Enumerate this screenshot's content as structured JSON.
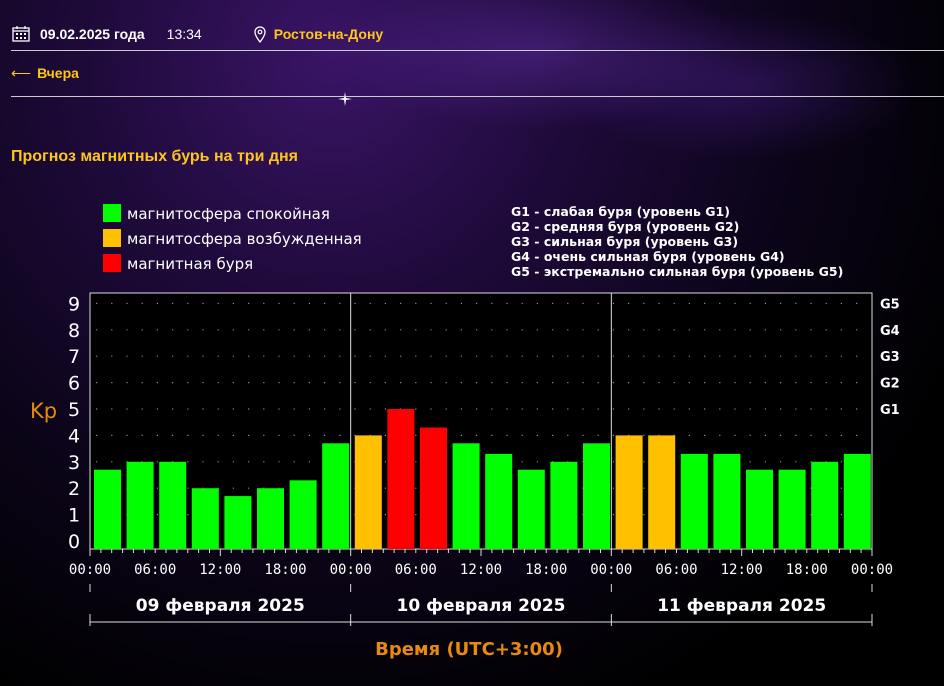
{
  "header": {
    "date": "09.02.2025 года",
    "time": "13:34",
    "city": "Ростов-на-Дону"
  },
  "nav": {
    "back_label": "Вчера",
    "back_arrow": "⟵"
  },
  "page_title": "Прогноз магнитных бурь на три дня",
  "colors": {
    "quiet": "#00ff00",
    "active": "#ffc000",
    "storm": "#ff0000",
    "accent": "#ffc61a",
    "axis_label": "#e88a10"
  },
  "chart_data": {
    "type": "bar",
    "title": "",
    "ylabel": "Kp",
    "xlabel": "Время (UTC+3:00)",
    "ylim": [
      0,
      9
    ],
    "yticks": [
      "0",
      "1",
      "2",
      "3",
      "4",
      "5",
      "6",
      "7",
      "8",
      "9"
    ],
    "g_levels": [
      {
        "label": "G1",
        "kp": 5
      },
      {
        "label": "G2",
        "kp": 6
      },
      {
        "label": "G3",
        "kp": 7
      },
      {
        "label": "G4",
        "kp": 8
      },
      {
        "label": "G5",
        "kp": 9
      }
    ],
    "legend": [
      {
        "label": "магнитосфера спокойная",
        "color": "#00ff00"
      },
      {
        "label": "магнитосфера возбужденная",
        "color": "#ffc000"
      },
      {
        "label": "магнитная буря",
        "color": "#ff0000"
      }
    ],
    "g_legend": [
      "G1 - слабая буря (уровень G1)",
      "G2 - средняя буря (уровень G2)",
      "G3 - сильная буря (уровень G3)",
      "G4 - очень сильная буря (уровень G4)",
      "G5 - экстремально сильная буря (уровень G5)"
    ],
    "time_ticks": [
      "00:00",
      "06:00",
      "12:00",
      "18:00",
      "00:00",
      "06:00",
      "12:00",
      "18:00",
      "00:00",
      "06:00",
      "12:00",
      "18:00",
      "00:00"
    ],
    "days": [
      {
        "label": "09 февраля 2025",
        "values": [
          2.7,
          3.0,
          3.0,
          2.0,
          1.7,
          2.0,
          2.3,
          3.7
        ],
        "status": [
          "quiet",
          "quiet",
          "quiet",
          "quiet",
          "quiet",
          "quiet",
          "quiet",
          "quiet"
        ]
      },
      {
        "label": "10 февраля 2025",
        "values": [
          4.0,
          5.0,
          4.3,
          3.7,
          3.3,
          2.7,
          3.0,
          3.7
        ],
        "status": [
          "active",
          "storm",
          "storm",
          "quiet",
          "quiet",
          "quiet",
          "quiet",
          "quiet"
        ]
      },
      {
        "label": "11 февраля 2025",
        "values": [
          4.0,
          4.0,
          3.3,
          3.3,
          2.7,
          2.7,
          3.0,
          3.3
        ],
        "status": [
          "active",
          "active",
          "quiet",
          "quiet",
          "quiet",
          "quiet",
          "quiet",
          "quiet"
        ]
      }
    ]
  }
}
